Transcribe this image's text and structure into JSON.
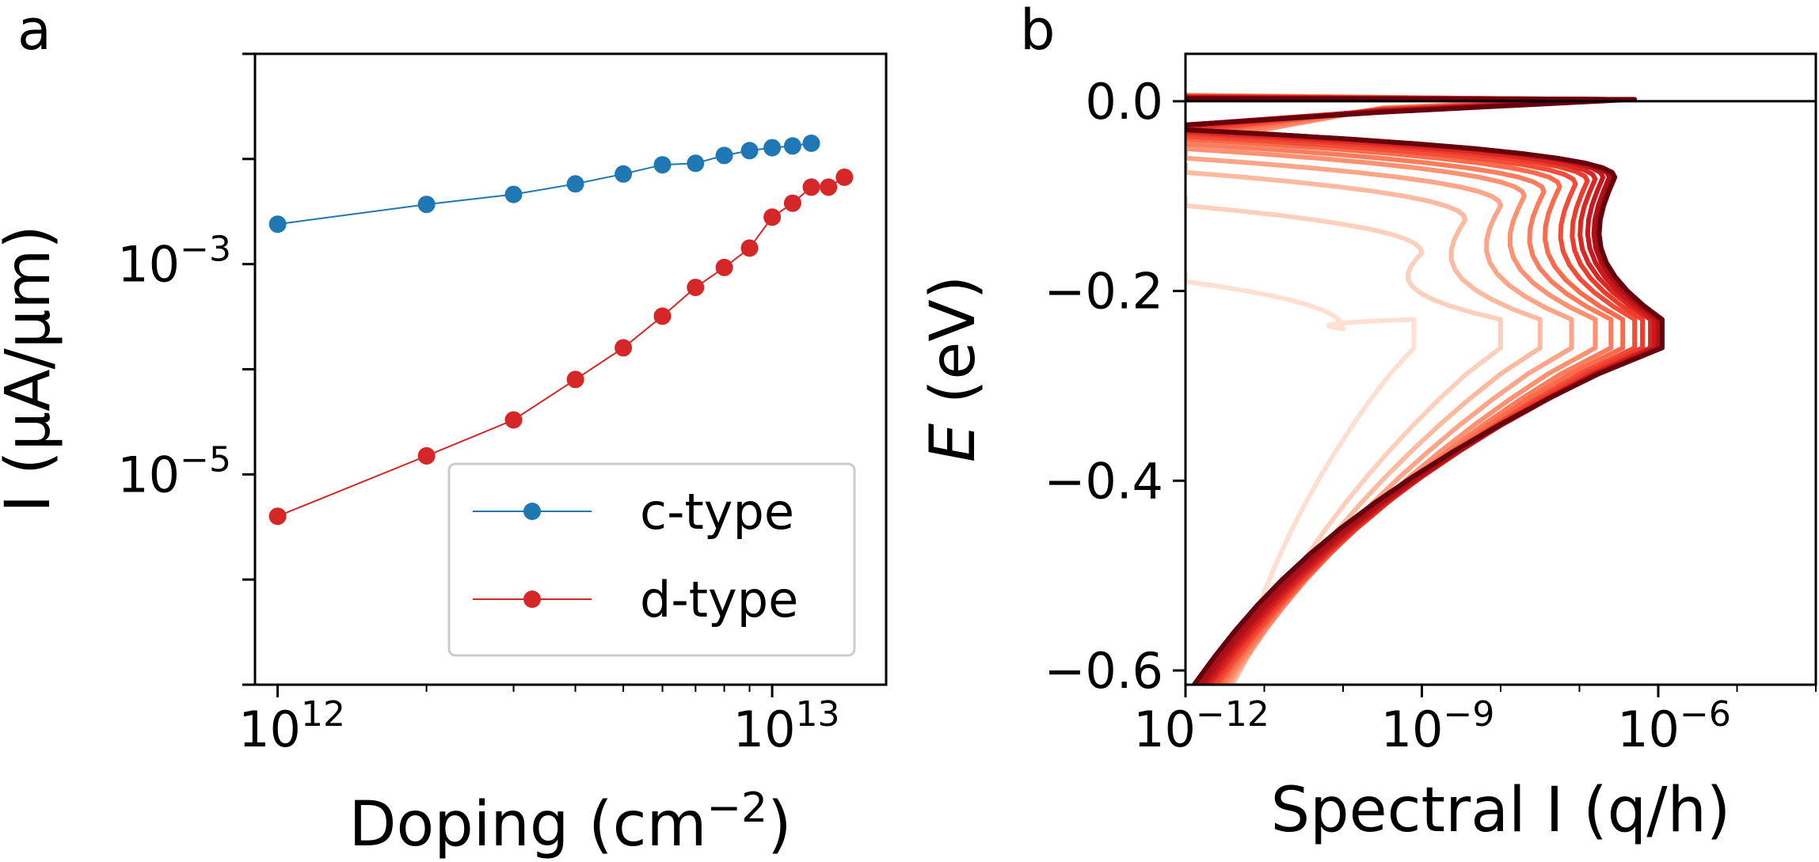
{
  "chart_data": [
    {
      "panel": "a",
      "type": "line",
      "xscale": "log",
      "yscale": "log",
      "xlabel": "Doping (cm",
      "xlabel_sup": "−2",
      "xlabel_tail": ")",
      "ylabel": "I (μA/μm)",
      "xlim": [
        900000000000.0,
        17000000000000.0
      ],
      "ylim": [
        1e-07,
        0.1
      ],
      "xtick_labels": [
        {
          "value": 1000000000000.0,
          "base": "10",
          "exp": "12"
        },
        {
          "value": 10000000000000.0,
          "base": "10",
          "exp": "13"
        }
      ],
      "ytick_labels": [
        {
          "value": 0.001,
          "base": "10",
          "exp": "−3"
        },
        {
          "value": 1e-05,
          "base": "10",
          "exp": "−5"
        }
      ],
      "legend": {
        "placement": "lower-right",
        "entries": [
          "c-type",
          "d-type"
        ]
      },
      "series": [
        {
          "name": "c-type",
          "color": "#1f77b4",
          "x": [
            1000000000000.0,
            2000000000000.0,
            3000000000000.0,
            4000000000000.0,
            5000000000000.0,
            6000000000000.0,
            7000000000000.0,
            8000000000000.0,
            9000000000000.0,
            10000000000000.0,
            11000000000000.0,
            12000000000000.0
          ],
          "y": [
            0.0024,
            0.0037,
            0.0046,
            0.0058,
            0.0072,
            0.0088,
            0.0091,
            0.0108,
            0.012,
            0.0128,
            0.0133,
            0.0141
          ]
        },
        {
          "name": "d-type",
          "color": "#d62728",
          "x": [
            1000000000000.0,
            2000000000000.0,
            3000000000000.0,
            4000000000000.0,
            5000000000000.0,
            6000000000000.0,
            7000000000000.0,
            8000000000000.0,
            9000000000000.0,
            10000000000000.0,
            11000000000000.0,
            12000000000000.0,
            13000000000000.0,
            14000000000000.0
          ],
          "y": [
            4e-06,
            1.5e-05,
            3.3e-05,
            8e-05,
            0.00016,
            0.00032,
            0.0006,
            0.00093,
            0.00142,
            0.0028,
            0.0038,
            0.0054,
            0.0054,
            0.0067
          ]
        }
      ]
    },
    {
      "panel": "b",
      "type": "line",
      "xscale": "log",
      "xlabel": "Spectral I (q/h)",
      "ylabel": "(eV)",
      "ylabel_var": "E",
      "xlim": [
        1e-12,
        0.0001
      ],
      "ylim": [
        -0.615,
        0.05
      ],
      "xtick_labels": [
        {
          "value": 1e-12,
          "base": "10",
          "exp": "−12"
        },
        {
          "value": 1e-09,
          "base": "10",
          "exp": "−9"
        },
        {
          "value": 1e-06,
          "base": "10",
          "exp": "−6"
        }
      ],
      "ytick_labels": [
        {
          "value": 0.0,
          "label": "0.0"
        },
        {
          "value": -0.2,
          "label": "−0.2"
        },
        {
          "value": -0.4,
          "label": "−0.4"
        },
        {
          "value": -0.6,
          "label": "−0.6"
        }
      ],
      "reference_line_y": 0.0,
      "colormap": "Reds",
      "n_curves": 14,
      "curve_params": {
        "top_energy_ev": [
          -0.19,
          -0.11,
          -0.075,
          -0.06,
          -0.05,
          -0.045,
          -0.04,
          -0.037,
          -0.034,
          -0.032,
          -0.03,
          -0.03,
          -0.03,
          -0.03
        ],
        "plateau_log10": [
          -10.0,
          -9.0,
          -8.45,
          -8.0,
          -7.7,
          -7.45,
          -7.25,
          -7.05,
          -6.9,
          -6.8,
          -6.7,
          -6.62,
          -6.58,
          -6.55
        ],
        "peak_log10": [
          -9.1,
          -8.0,
          -7.5,
          -7.1,
          -6.8,
          -6.6,
          -6.45,
          -6.3,
          -6.2,
          -6.1,
          -6.05,
          -6.0,
          -5.98,
          -5.95
        ],
        "peak_energy_ev": -0.26,
        "colors": [
          "#fee0d2",
          "#fdd0bd",
          "#fcbba1",
          "#fca588",
          "#fc9272",
          "#fb7d5d",
          "#fb6a4a",
          "#f14d39",
          "#ef3b2c",
          "#d92723",
          "#cb181d",
          "#b11218",
          "#a50f15",
          "#67000d"
        ]
      }
    }
  ],
  "panels": {
    "a": "a",
    "b": "b"
  }
}
